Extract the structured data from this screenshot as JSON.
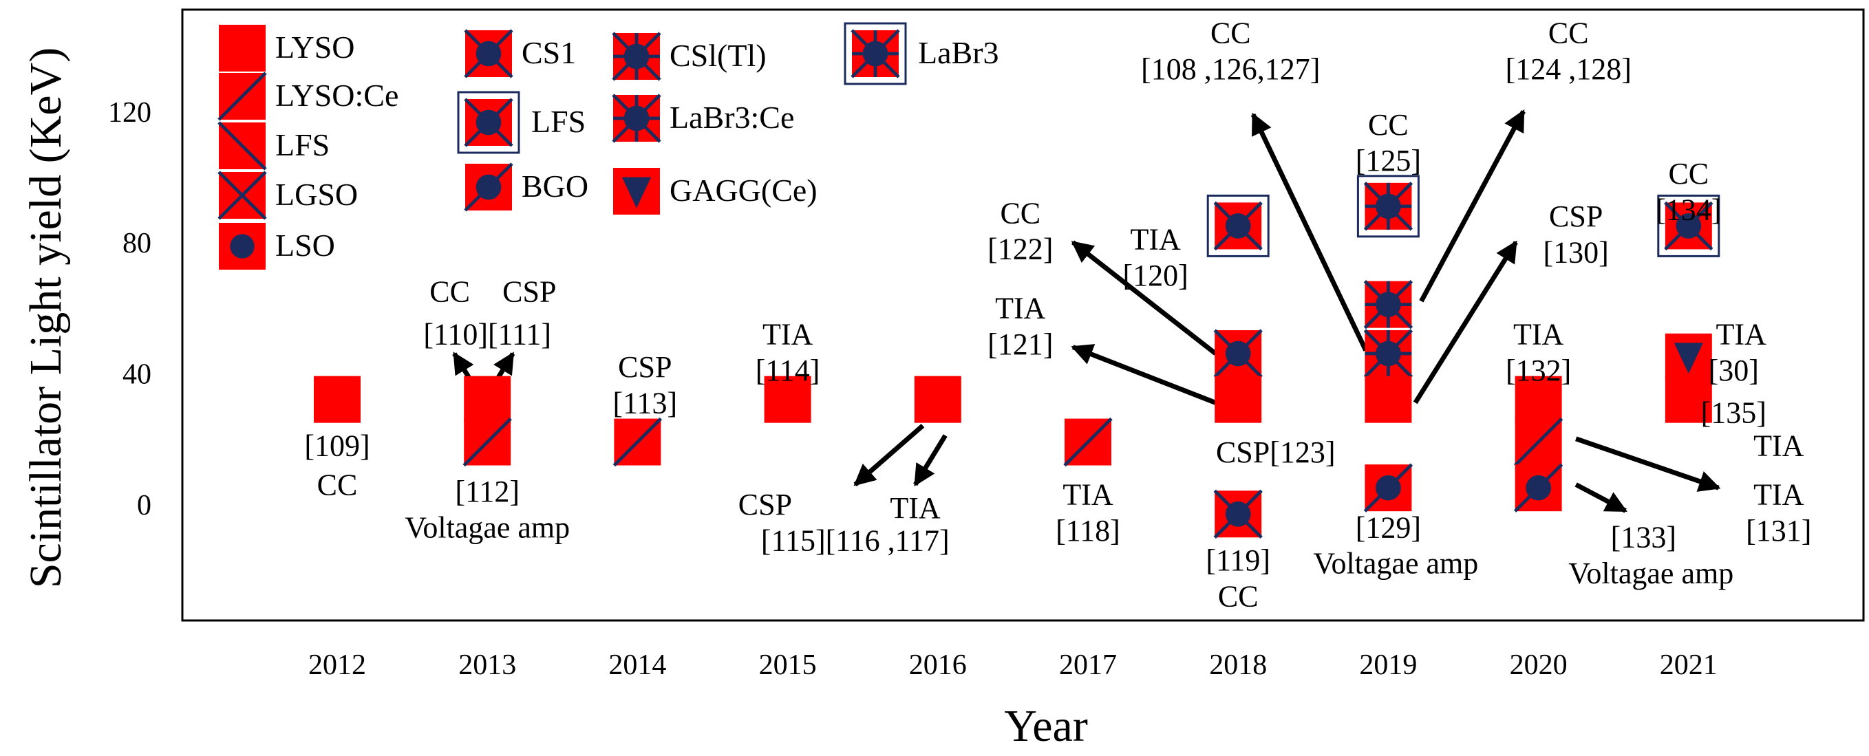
{
  "chart_data": {
    "type": "scatter",
    "xlabel": "Year",
    "ylabel": "Scintillator Light yield (KeV)",
    "x_ticks": [
      "2012",
      "2013",
      "2014",
      "2015",
      "2016",
      "2017",
      "2018",
      "2019",
      "2020",
      "2021"
    ],
    "y_ticks": [
      "0",
      "40",
      "80",
      "120"
    ],
    "xlim": [
      2011,
      2022
    ],
    "ylim": [
      -35,
      150
    ],
    "grid": false,
    "legend": {
      "position": "top-left"
    },
    "colors": {
      "marker_fill": "#ff0000",
      "glyph": "#1c2b5e"
    },
    "legend_entries": [
      {
        "name": "LYSO",
        "glyph": "plain"
      },
      {
        "name": "LYSO:Ce",
        "glyph": "diag-up"
      },
      {
        "name": "LFS",
        "glyph": "diag-down"
      },
      {
        "name": "LGSO",
        "glyph": "cross"
      },
      {
        "name": "LSO",
        "glyph": "dot"
      },
      {
        "name": "CS1",
        "glyph": "dot-cross"
      },
      {
        "name": "LFS",
        "glyph": "dot-cross-framed"
      },
      {
        "name": "BGO",
        "glyph": "dot-diag"
      },
      {
        "name": "CSl(Tl)",
        "glyph": "dot-star"
      },
      {
        "name": "LaBr3:Ce",
        "glyph": "dot-star"
      },
      {
        "name": "GAGG(Ce)",
        "glyph": "triangle"
      },
      {
        "name": "LaBr3",
        "glyph": "dot-star-framed"
      }
    ],
    "points": [
      {
        "x": 2012,
        "y": 32,
        "glyph": "plain"
      },
      {
        "x": 2013,
        "y": 32,
        "glyph": "plain"
      },
      {
        "x": 2013,
        "y": 19,
        "glyph": "diag-up"
      },
      {
        "x": 2014,
        "y": 19,
        "glyph": "diag-up"
      },
      {
        "x": 2015,
        "y": 32,
        "glyph": "plain"
      },
      {
        "x": 2016,
        "y": 32,
        "glyph": "plain"
      },
      {
        "x": 2017,
        "y": 19,
        "glyph": "diag-up"
      },
      {
        "x": 2018,
        "y": 85,
        "glyph": "dot-cross-framed"
      },
      {
        "x": 2018,
        "y": 46,
        "glyph": "dot-cross"
      },
      {
        "x": 2018,
        "y": 32,
        "glyph": "plain"
      },
      {
        "x": 2018,
        "y": -3,
        "glyph": "dot-cross"
      },
      {
        "x": 2019,
        "y": 91,
        "glyph": "dot-star-framed"
      },
      {
        "x": 2019,
        "y": 61,
        "glyph": "dot-star"
      },
      {
        "x": 2019,
        "y": 46,
        "glyph": "dot-star"
      },
      {
        "x": 2019,
        "y": 32,
        "glyph": "plain"
      },
      {
        "x": 2019,
        "y": 5,
        "glyph": "dot-diag"
      },
      {
        "x": 2020,
        "y": 32,
        "glyph": "plain"
      },
      {
        "x": 2020,
        "y": 19,
        "glyph": "diag-up"
      },
      {
        "x": 2020,
        "y": 5,
        "glyph": "dot-diag"
      },
      {
        "x": 2021,
        "y": 85,
        "glyph": "dot-cross-framed"
      },
      {
        "x": 2021,
        "y": 45,
        "glyph": "triangle"
      },
      {
        "x": 2021,
        "y": 32,
        "glyph": "plain"
      }
    ],
    "annotations": [
      {
        "text": "[109]",
        "at": [
          2012,
          18
        ]
      },
      {
        "text": "CC",
        "at": [
          2012,
          6
        ]
      },
      {
        "text": "CC",
        "at": [
          2012.75,
          65
        ]
      },
      {
        "text": "[110][111]",
        "at": [
          2013,
          52
        ]
      },
      {
        "text": "CSP",
        "at": [
          2013.28,
          65
        ]
      },
      {
        "text": "[112]",
        "at": [
          2013,
          4
        ]
      },
      {
        "text": "Voltagae amp",
        "at": [
          2013,
          -7
        ]
      },
      {
        "text": "CSP",
        "at": [
          2014.05,
          42
        ]
      },
      {
        "text": "[113]",
        "at": [
          2014.05,
          31
        ]
      },
      {
        "text": "TIA",
        "at": [
          2015,
          52
        ]
      },
      {
        "text": "[114]",
        "at": [
          2015,
          41
        ]
      },
      {
        "text": "CSP",
        "at": [
          2014.85,
          0
        ]
      },
      {
        "text": "[115][116 ,117]",
        "at": [
          2015.45,
          -11
        ]
      },
      {
        "text": "TIA",
        "at": [
          2015.85,
          -1
        ]
      },
      {
        "text": "TIA",
        "at": [
          2017,
          3
        ]
      },
      {
        "text": "[118]",
        "at": [
          2017,
          -8
        ]
      },
      {
        "text": "CC",
        "at": [
          2016.55,
          89
        ]
      },
      {
        "text": "[122]",
        "at": [
          2016.55,
          78
        ]
      },
      {
        "text": "TIA",
        "at": [
          2016.55,
          60
        ]
      },
      {
        "text": "[121]",
        "at": [
          2016.55,
          49
        ]
      },
      {
        "text": "TIA",
        "at": [
          2017.45,
          81
        ]
      },
      {
        "text": "[120]",
        "at": [
          2017.45,
          70
        ]
      },
      {
        "text": "CC",
        "at": [
          2017.95,
          144
        ]
      },
      {
        "text": "[108 ,126,127]",
        "at": [
          2017.95,
          133
        ]
      },
      {
        "text": "CSP[123]",
        "at": [
          2018.25,
          16
        ]
      },
      {
        "text": "[119]",
        "at": [
          2018,
          -17
        ]
      },
      {
        "text": "CC",
        "at": [
          2018,
          -28
        ]
      },
      {
        "text": "CC",
        "at": [
          2019,
          116
        ]
      },
      {
        "text": "[125]",
        "at": [
          2019,
          105
        ]
      },
      {
        "text": "CC",
        "at": [
          2020.2,
          144
        ]
      },
      {
        "text": "[124 ,128]",
        "at": [
          2020.2,
          133
        ]
      },
      {
        "text": "CSP",
        "at": [
          2020.25,
          88
        ]
      },
      {
        "text": "[130]",
        "at": [
          2020.25,
          77
        ]
      },
      {
        "text": "[129]",
        "at": [
          2019,
          -7
        ]
      },
      {
        "text": "Voltagae amp",
        "at": [
          2019.05,
          -18
        ]
      },
      {
        "text": "TIA",
        "at": [
          2020,
          52
        ]
      },
      {
        "text": "[132]",
        "at": [
          2020,
          41
        ]
      },
      {
        "text": "[133]",
        "at": [
          2020.7,
          -10
        ]
      },
      {
        "text": "Voltagae amp",
        "at": [
          2020.75,
          -21
        ]
      },
      {
        "text": "CC",
        "at": [
          2021,
          101
        ]
      },
      {
        "text": "[134]",
        "at": [
          2021,
          90
        ]
      },
      {
        "text": "TIA",
        "at": [
          2021.35,
          52
        ]
      },
      {
        "text": "[30]",
        "at": [
          2021.3,
          41
        ]
      },
      {
        "text": "[135]",
        "at": [
          2021.3,
          28
        ]
      },
      {
        "text": "TIA",
        "at": [
          2021.6,
          18
        ]
      },
      {
        "text": "TIA",
        "at": [
          2021.6,
          3
        ]
      },
      {
        "text": "[131]",
        "at": [
          2021.6,
          -8
        ]
      }
    ],
    "arrows": [
      {
        "from": [
          2012.9,
          37
        ],
        "to": [
          2012.78,
          46
        ]
      },
      {
        "from": [
          2013.05,
          37
        ],
        "to": [
          2013.17,
          46
        ]
      },
      {
        "from": [
          2015.9,
          24
        ],
        "to": [
          2015.45,
          6
        ]
      },
      {
        "from": [
          2016.05,
          21
        ],
        "to": [
          2015.85,
          6
        ]
      },
      {
        "from": [
          2017.85,
          46
        ],
        "to": [
          2016.9,
          80
        ]
      },
      {
        "from": [
          2017.85,
          31
        ],
        "to": [
          2016.9,
          48
        ]
      },
      {
        "from": [
          2018.85,
          47
        ],
        "to": [
          2018.1,
          119
        ]
      },
      {
        "from": [
          2019.22,
          62
        ],
        "to": [
          2019.9,
          120
        ]
      },
      {
        "from": [
          2019.18,
          31
        ],
        "to": [
          2019.85,
          80
        ]
      },
      {
        "from": [
          2020.25,
          20
        ],
        "to": [
          2021.2,
          5
        ]
      },
      {
        "from": [
          2020.25,
          6
        ],
        "to": [
          2020.58,
          -2
        ]
      }
    ]
  }
}
